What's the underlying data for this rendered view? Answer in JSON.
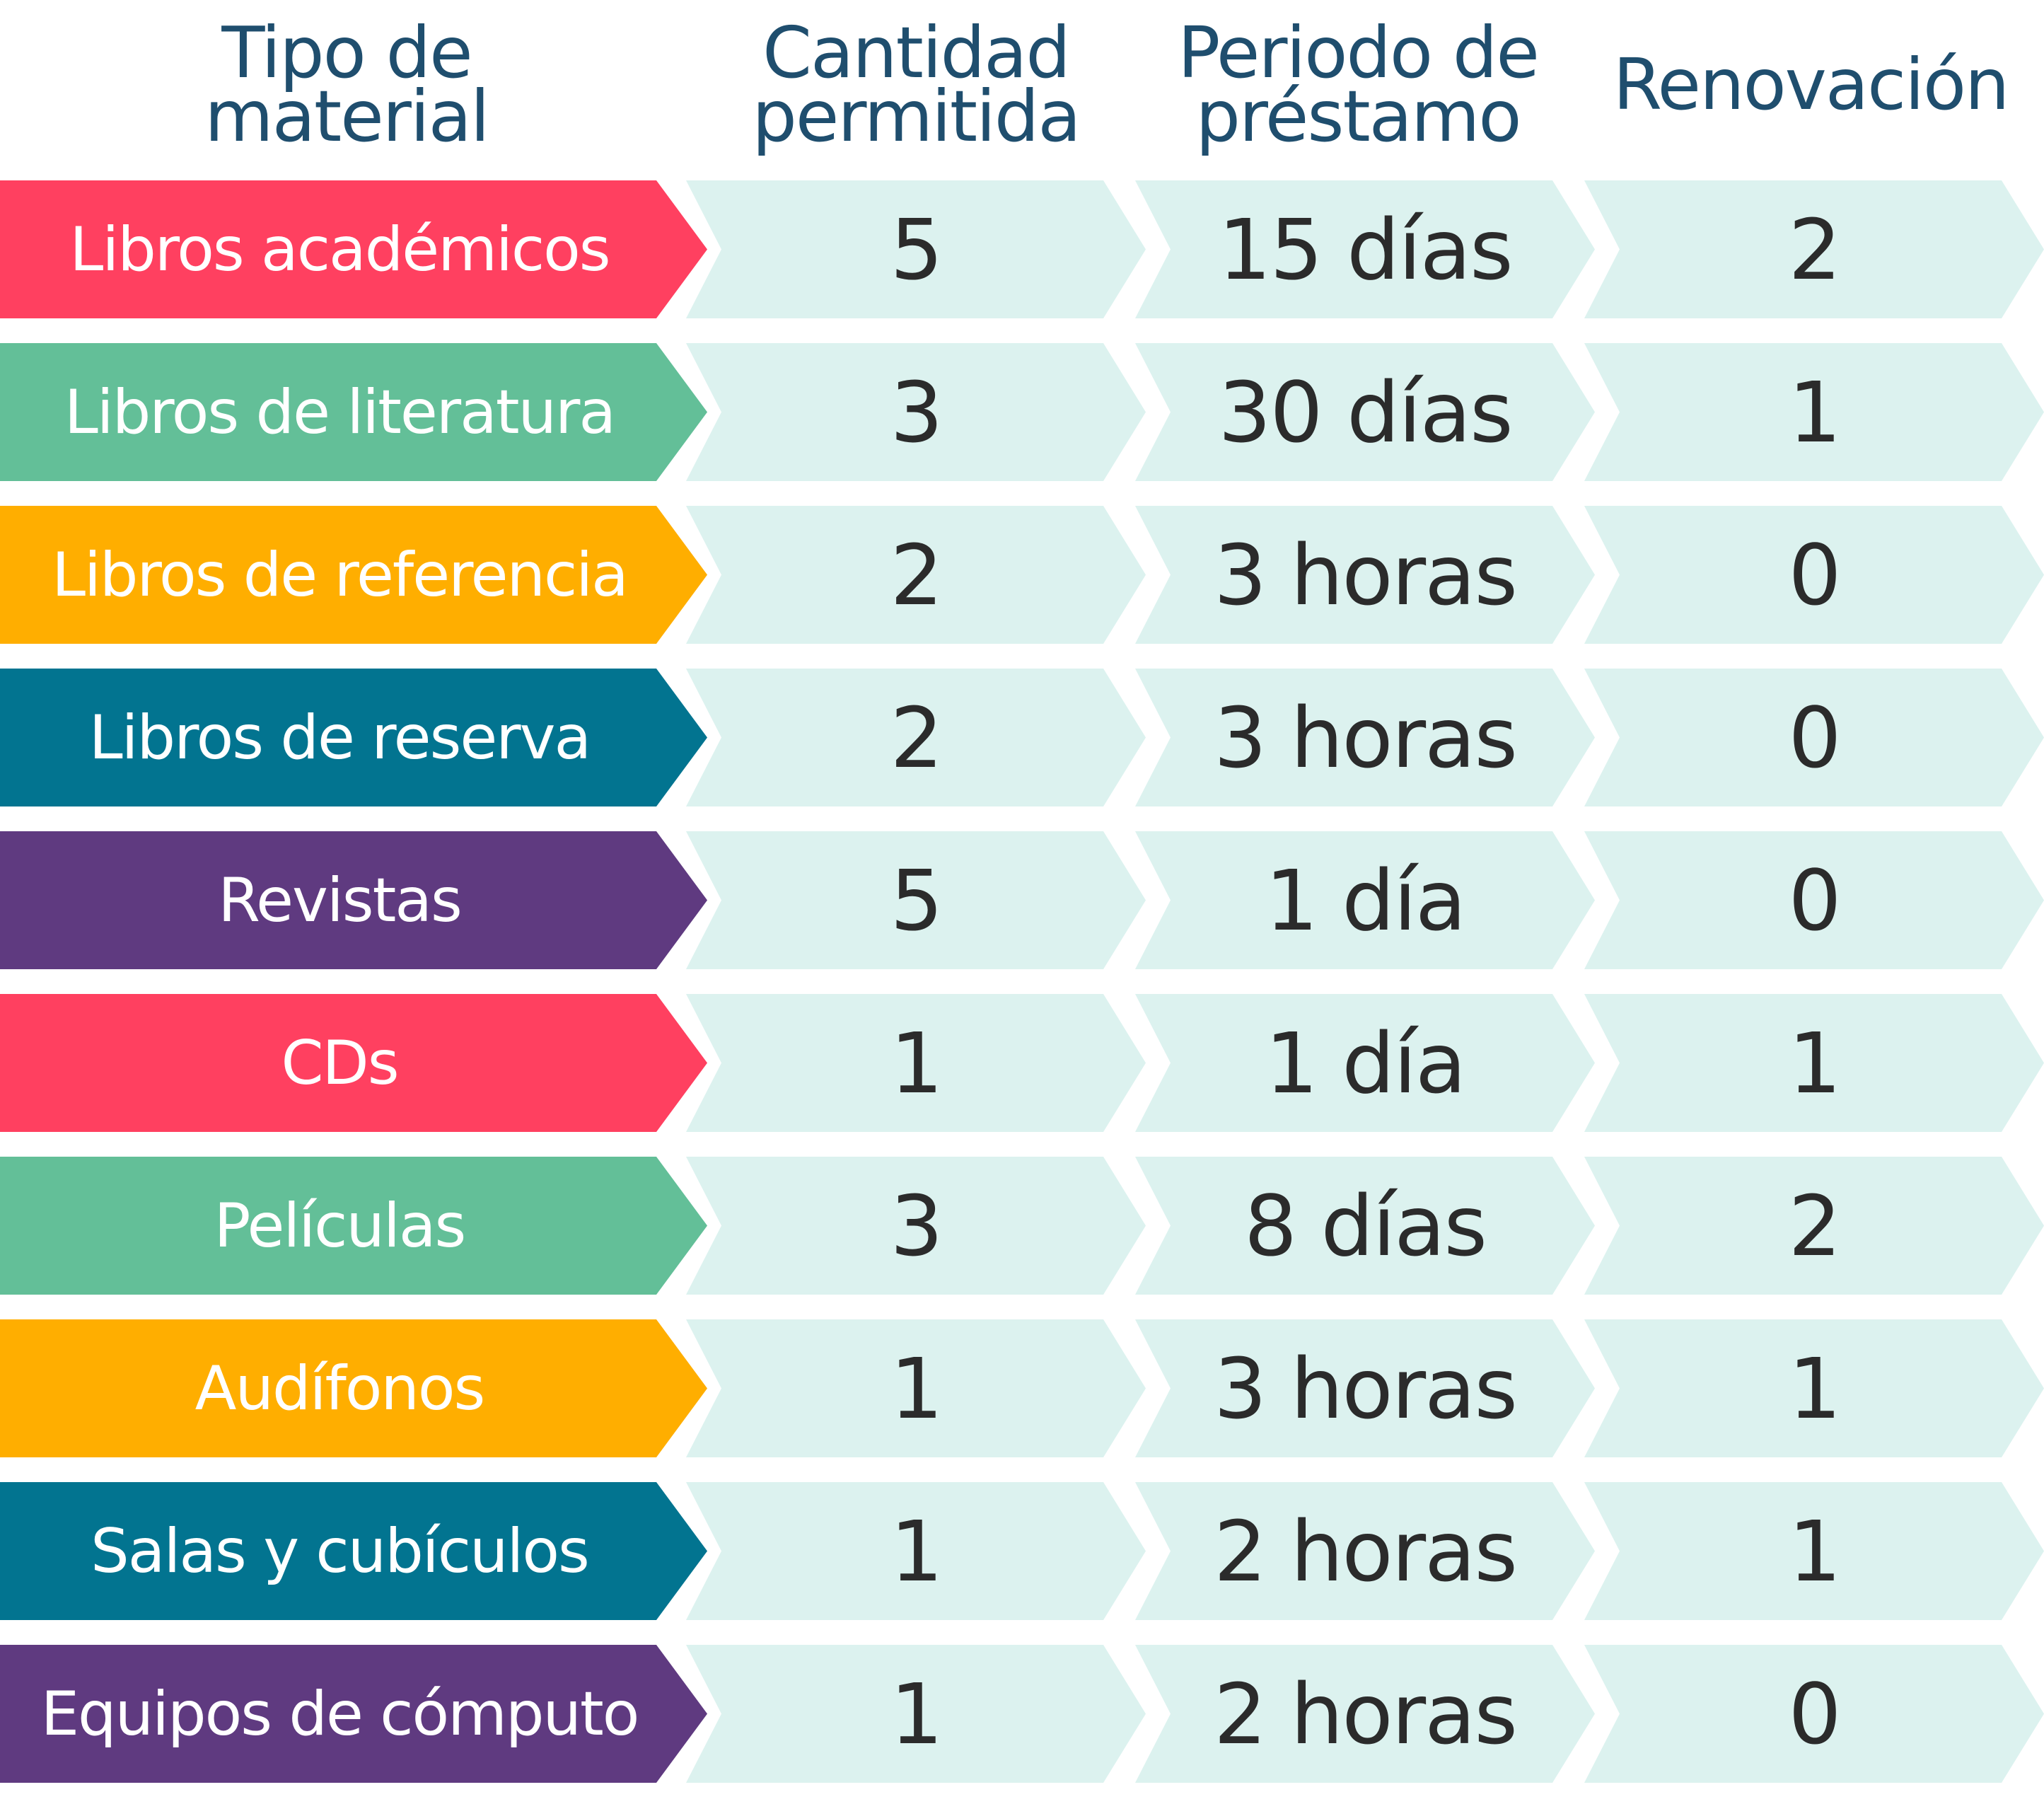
{
  "header": {
    "tipo": "Tipo de\nmaterial",
    "cantidad": "Cantidad\npermitida",
    "periodo": "Periodo de\npréstamo",
    "renovacion": "Renovación"
  },
  "colors": {
    "header_text": "#1f4e6e",
    "cell_bg": "#dcf2ef",
    "pink": "#ff4060",
    "green": "#63bf98",
    "orange": "#ffae00",
    "teal": "#027490",
    "purple": "#5f3a80"
  },
  "rows": [
    {
      "tipo": "Libros académicos",
      "cantidad": "5",
      "periodo": "15 días",
      "renovacion": "2",
      "color": "#ff4060"
    },
    {
      "tipo": "Libros de literatura",
      "cantidad": "3",
      "periodo": "30 días",
      "renovacion": "1",
      "color": "#63bf98"
    },
    {
      "tipo": "Libros de referencia",
      "cantidad": "2",
      "periodo": "3 horas",
      "renovacion": "0",
      "color": "#ffae00"
    },
    {
      "tipo": "Libros de reserva",
      "cantidad": "2",
      "periodo": "3 horas",
      "renovacion": "0",
      "color": "#027490"
    },
    {
      "tipo": "Revistas",
      "cantidad": "5",
      "periodo": "1 día",
      "renovacion": "0",
      "color": "#5f3a80"
    },
    {
      "tipo": "CDs",
      "cantidad": "1",
      "periodo": "1 día",
      "renovacion": "1",
      "color": "#ff4060"
    },
    {
      "tipo": "Películas",
      "cantidad": "3",
      "periodo": "8 días",
      "renovacion": "2",
      "color": "#63bf98"
    },
    {
      "tipo": "Audífonos",
      "cantidad": "1",
      "periodo": "3 horas",
      "renovacion": "1",
      "color": "#ffae00"
    },
    {
      "tipo": "Salas y cubículos",
      "cantidad": "1",
      "periodo": "2 horas",
      "renovacion": "1",
      "color": "#027490"
    },
    {
      "tipo": "Equipos de cómputo",
      "cantidad": "1",
      "periodo": "2 horas",
      "renovacion": "0",
      "color": "#5f3a80"
    }
  ]
}
